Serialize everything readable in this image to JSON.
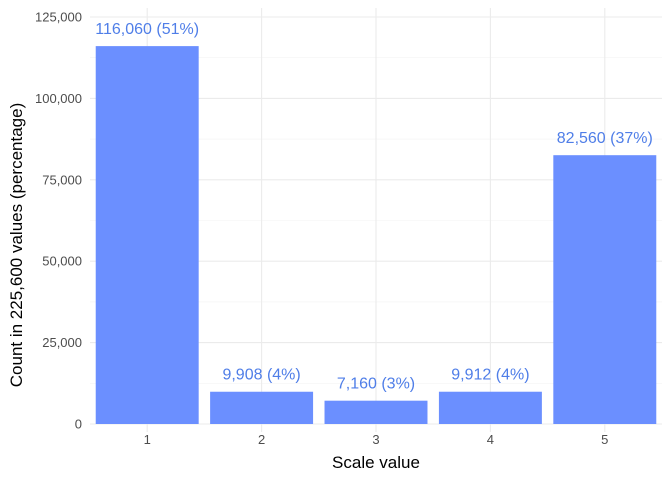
{
  "chart_data": {
    "type": "bar",
    "title": "",
    "xlabel": "Scale value",
    "ylabel": "Count in 225,600 values (percentage)",
    "categories": [
      "1",
      "2",
      "3",
      "4",
      "5"
    ],
    "values": [
      116060,
      9908,
      7160,
      9912,
      82560
    ],
    "data_labels": [
      "116,060 (51%)",
      "9,908 (4%)",
      "7,160 (3%)",
      "9,912 (4%)",
      "82,560 (37%)"
    ],
    "ylim": [
      0,
      125000
    ],
    "yticks": [
      0,
      25000,
      50000,
      75000,
      100000,
      125000
    ],
    "ytick_labels": [
      "0",
      "25,000",
      "50,000",
      "75,000",
      "100,000",
      "125,000"
    ],
    "grid": true,
    "bar_color": "#6b8fff",
    "label_color": "#4f7ee8"
  }
}
